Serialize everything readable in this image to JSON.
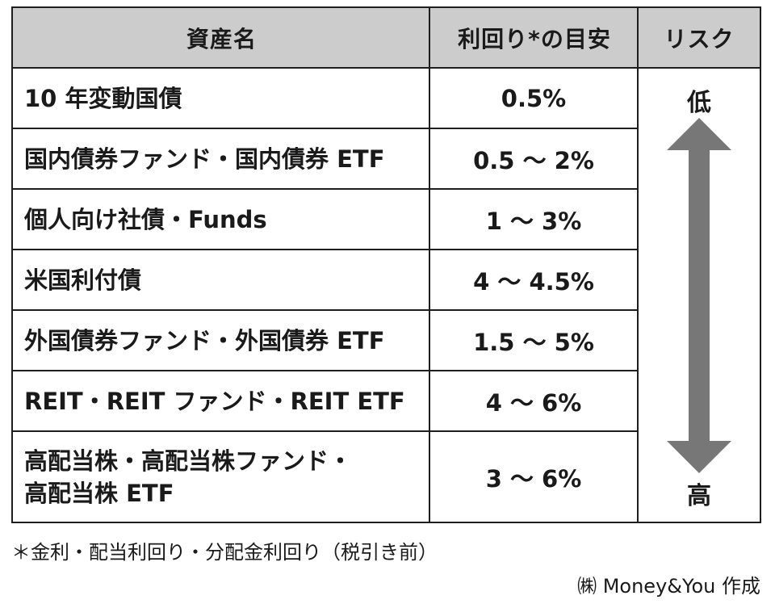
{
  "table": {
    "headers": {
      "asset": "資産名",
      "yield": "利回り*の目安",
      "risk": "リスク"
    },
    "rows": [
      {
        "name": "10 年変動国債",
        "yield": "0.5%"
      },
      {
        "name": "国内債券ファンド・国内債券 ETF",
        "yield": "0.5 〜 2%"
      },
      {
        "name": "個人向け社債・Funds",
        "yield": "1 〜 3%"
      },
      {
        "name": "米国利付債",
        "yield": "4 〜 4.5%"
      },
      {
        "name": "外国債券ファンド・外国債券 ETF",
        "yield": "1.5 〜 5%"
      },
      {
        "name": "REIT・REIT ファンド・REIT ETF",
        "yield": "4 〜 6%"
      },
      {
        "name_line1": "高配当株・高配当株ファンド・",
        "name_line2": "高配当株 ETF",
        "yield": "3 〜 6%"
      }
    ],
    "risk": {
      "low": "低",
      "high": "高",
      "arrow_icon": "double-headed-vertical-arrow",
      "arrow_color": "#777777"
    }
  },
  "footnote": "＊金利・配当利回り・分配金利回り（税引き前）",
  "credit": "㈱ Money&You 作成",
  "colors": {
    "header_bg": "#cccccc",
    "border": "#1e1e1e",
    "text": "#1a1a1a"
  }
}
